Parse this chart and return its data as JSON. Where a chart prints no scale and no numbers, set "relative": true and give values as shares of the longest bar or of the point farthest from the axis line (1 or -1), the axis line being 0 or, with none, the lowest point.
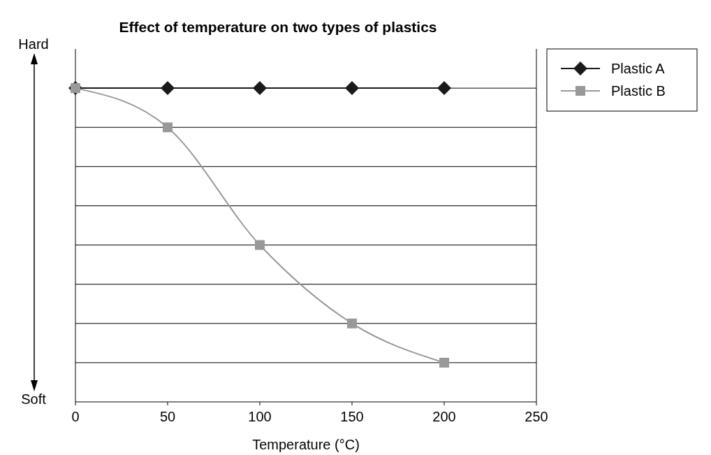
{
  "chart_data": {
    "type": "line",
    "title": "Effect of temperature on two types of plastics",
    "xlabel": "Temperature (°C)",
    "relative": true,
    "x": [
      0,
      50,
      100,
      150,
      200
    ],
    "xlim": [
      0,
      250
    ],
    "xticks": [
      0,
      50,
      100,
      150,
      200,
      250
    ],
    "series": [
      {
        "name": "Plastic A",
        "color": "#1a1a1a",
        "marker": "diamond",
        "values": [
          1,
          1,
          1,
          1,
          1
        ]
      },
      {
        "name": "Plastic B",
        "color": "#999999",
        "marker": "square",
        "values": [
          1,
          0.875,
          0.5,
          0.25,
          0.125
        ]
      }
    ],
    "annotations": [
      "Hard",
      "Soft"
    ],
    "grid": "y",
    "legend": "top right",
    "line_style": "solid"
  }
}
